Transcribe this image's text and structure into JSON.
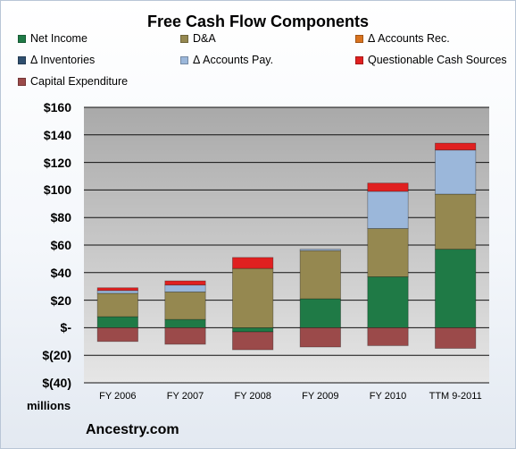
{
  "chart_data": {
    "type": "bar",
    "stacked": true,
    "title": "Free Cash Flow Components",
    "unit_label": "millions",
    "source": "Ancestry.com",
    "categories": [
      "FY 2006",
      "FY 2007",
      "FY 2008",
      "FY 2009",
      "FY 2010",
      "TTM 9-2011"
    ],
    "ylim": [
      -40,
      160
    ],
    "yticks": [
      160,
      140,
      120,
      100,
      80,
      60,
      40,
      20,
      0,
      -20,
      -40
    ],
    "ytick_labels": [
      "$160",
      "$140",
      "$120",
      "$100",
      "$80",
      "$60",
      "$40",
      "$20",
      "$-",
      "$(20)",
      "$(40)"
    ],
    "grid": true,
    "legend_position": "top",
    "series": [
      {
        "name": "Net Income",
        "color": "#1f7a46",
        "values": [
          8,
          6,
          -3,
          21,
          37,
          57
        ]
      },
      {
        "name": "D&A",
        "color": "#958850",
        "values": [
          17,
          20,
          43,
          35,
          35,
          40
        ]
      },
      {
        "name": "Δ Accounts Rec.",
        "color": "#d9731f",
        "values": [
          0,
          0,
          0,
          0,
          0,
          0
        ]
      },
      {
        "name": "Δ Inventories",
        "color": "#2f4f6f",
        "values": [
          0,
          0,
          0,
          0,
          0,
          0
        ]
      },
      {
        "name": "Δ Accounts Pay.",
        "color": "#9bb7da",
        "values": [
          2,
          5,
          0,
          1,
          27,
          32
        ]
      },
      {
        "name": "Questionable Cash Sources",
        "color": "#e02020",
        "values": [
          2,
          3,
          8,
          0,
          6,
          5
        ]
      },
      {
        "name": "Capital Expenditure",
        "color": "#9b4a4a",
        "values": [
          -10,
          -12,
          -13,
          -14,
          -13,
          -15
        ]
      }
    ]
  }
}
